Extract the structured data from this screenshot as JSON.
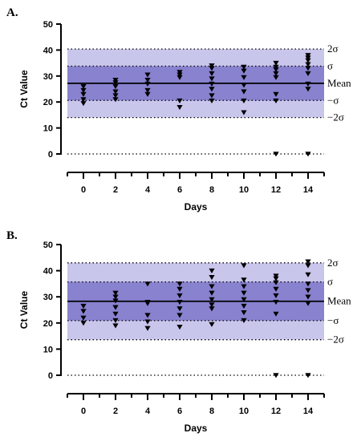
{
  "chart_data": [
    {
      "panel": "A.",
      "type": "scatter",
      "xlabel": "Days",
      "ylabel": "Ct Value",
      "ylim": [
        0,
        50
      ],
      "xlim": [
        -1,
        15
      ],
      "yticks": [
        0,
        10,
        20,
        30,
        40,
        50
      ],
      "xticks": [
        0,
        2,
        4,
        6,
        8,
        10,
        12,
        14
      ],
      "mean": 27.2,
      "sigma_plus": 33.8,
      "sigma_minus": 20.6,
      "two_sigma_plus": 40.4,
      "two_sigma_minus": 14.0,
      "zero_line": 0,
      "band_labels": {
        "two_sigma_plus": "2σ",
        "sigma_plus": "σ",
        "mean": "Mean",
        "sigma_minus": "−σ",
        "two_sigma_minus": "−2σ"
      },
      "marker": "triangle-down",
      "points": [
        {
          "day": 0,
          "values": [
            19.5,
            21,
            23,
            24.5,
            26
          ]
        },
        {
          "day": 2,
          "values": [
            21,
            22.5,
            24,
            26,
            27.5,
            28.5
          ]
        },
        {
          "day": 4,
          "values": [
            23,
            24.5,
            27,
            28.5,
            30.5
          ]
        },
        {
          "day": 6,
          "values": [
            18,
            20.5,
            29.5,
            30.5,
            31.5
          ]
        },
        {
          "day": 8,
          "values": [
            20.5,
            22.5,
            25,
            27,
            29,
            31,
            33,
            34
          ]
        },
        {
          "day": 10,
          "values": [
            16,
            20.5,
            24,
            26.5,
            29.5,
            32,
            33.5
          ]
        },
        {
          "day": 12,
          "values": [
            0,
            20.5,
            23,
            29.5,
            31,
            32.5,
            33.5,
            35
          ]
        },
        {
          "day": 14,
          "values": [
            0,
            25,
            27,
            31,
            33,
            34.5,
            36,
            37,
            38
          ]
        }
      ]
    },
    {
      "panel": "B.",
      "type": "scatter",
      "xlabel": "Days",
      "ylabel": "Ct Value",
      "ylim": [
        0,
        50
      ],
      "xlim": [
        -1,
        15
      ],
      "yticks": [
        0,
        10,
        20,
        30,
        40,
        50
      ],
      "xticks": [
        0,
        2,
        4,
        6,
        8,
        10,
        12,
        14
      ],
      "mean": 28.3,
      "sigma_plus": 35.7,
      "sigma_minus": 20.9,
      "two_sigma_plus": 43.0,
      "two_sigma_minus": 13.6,
      "zero_line": 0,
      "band_labels": {
        "two_sigma_plus": "2σ",
        "sigma_plus": "σ",
        "mean": "Mean",
        "sigma_minus": "−σ",
        "two_sigma_minus": "−2σ"
      },
      "marker": "triangle-down",
      "points": [
        {
          "day": 0,
          "values": [
            20,
            22,
            24.5,
            26.5
          ]
        },
        {
          "day": 2,
          "values": [
            19,
            21,
            23.5,
            26,
            28.5,
            30,
            31.5
          ]
        },
        {
          "day": 4,
          "values": [
            18,
            20.5,
            23,
            27.5,
            28,
            35
          ]
        },
        {
          "day": 6,
          "values": [
            18.5,
            23,
            25.5,
            28,
            30.5,
            33,
            35
          ]
        },
        {
          "day": 8,
          "values": [
            19.5,
            25.5,
            27,
            29,
            31.5,
            34,
            37.5,
            40
          ]
        },
        {
          "day": 10,
          "values": [
            21,
            24,
            26.5,
            29,
            31.5,
            34,
            36.5,
            42
          ]
        },
        {
          "day": 12,
          "values": [
            0,
            23.5,
            28,
            30.5,
            33,
            35.5,
            37,
            38
          ]
        },
        {
          "day": 14,
          "values": [
            0,
            27.5,
            30,
            32.5,
            35,
            38.5,
            42,
            43.5
          ]
        }
      ]
    }
  ]
}
